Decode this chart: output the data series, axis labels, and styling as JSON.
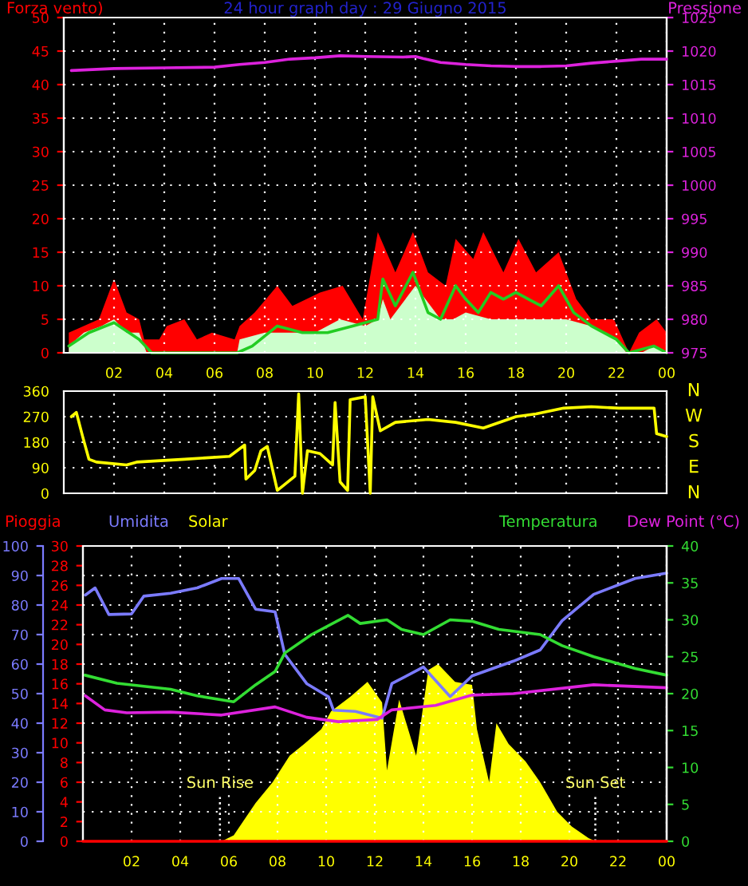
{
  "chart_data": [
    {
      "type": "line",
      "title": "24 hour graph day : 29 Giugno 2015",
      "ylabel": "Forza vento)",
      "y2label": "Pressione",
      "xlim": [
        "2015-06-29T00:00",
        "2015-06-30T00:00"
      ],
      "xticks": [
        {
          "value": "2015-06-29T02:00",
          "label": "02"
        },
        {
          "value": "2015-06-29T04:00",
          "label": "04"
        },
        {
          "value": "2015-06-29T06:00",
          "label": "06"
        },
        {
          "value": "2015-06-29T08:00",
          "label": "08"
        },
        {
          "value": "2015-06-29T10:00",
          "label": "10"
        },
        {
          "value": "2015-06-29T12:00",
          "label": "12"
        },
        {
          "value": "2015-06-29T14:00",
          "label": "14"
        },
        {
          "value": "2015-06-29T16:00",
          "label": "16"
        },
        {
          "value": "2015-06-29T18:00",
          "label": "18"
        },
        {
          "value": "2015-06-29T20:00",
          "label": "20"
        },
        {
          "value": "2015-06-29T22:00",
          "label": "22"
        },
        {
          "value": "2015-06-30T00:00",
          "label": "00"
        }
      ],
      "ylim": [
        0,
        50
      ],
      "yticks": [
        0,
        5,
        10,
        15,
        20,
        25,
        30,
        35,
        40,
        45,
        50
      ],
      "y2lim": [
        975,
        1025
      ],
      "y2ticks": [
        975,
        980,
        985,
        990,
        995,
        1000,
        1005,
        1010,
        1015,
        1020,
        1025
      ],
      "grid": true,
      "series": [
        {
          "type": "area",
          "color": "#ff0000",
          "x": [
            "2015-06-29T00:12",
            "2015-06-29T01:24",
            "2015-06-29T02:00",
            "2015-06-29T02:30",
            "2015-06-29T03:00",
            "2015-06-29T03:12",
            "2015-06-29T03:48",
            "2015-06-29T04:06",
            "2015-06-29T04:48",
            "2015-06-29T05:18",
            "2015-06-29T05:54",
            "2015-06-29T06:48",
            "2015-06-29T07:00",
            "2015-06-29T07:36",
            "2015-06-29T08:30",
            "2015-06-29T09:06",
            "2015-06-29T10:12",
            "2015-06-29T11:06",
            "2015-06-29T11:54",
            "2015-06-29T12:30",
            "2015-06-29T13:12",
            "2015-06-29T13:54",
            "2015-06-29T14:30",
            "2015-06-29T15:12",
            "2015-06-29T15:36",
            "2015-06-29T16:18",
            "2015-06-29T16:42",
            "2015-06-29T17:30",
            "2015-06-29T18:06",
            "2015-06-29T18:48",
            "2015-06-29T19:42",
            "2015-06-29T20:24",
            "2015-06-29T21:00",
            "2015-06-29T21:54",
            "2015-06-29T22:30",
            "2015-06-29T22:54",
            "2015-06-29T23:36",
            "2015-06-30T00:00"
          ],
          "values": [
            3,
            5,
            11,
            6,
            5,
            2,
            2,
            4,
            5,
            2,
            3,
            2,
            4,
            6,
            10,
            7,
            9,
            10,
            5,
            18,
            12,
            18,
            12,
            10,
            17,
            14,
            18,
            12,
            17,
            12,
            15,
            8,
            5,
            5,
            0,
            3,
            5,
            3
          ]
        },
        {
          "type": "area",
          "color": "#ccffcc",
          "x": [
            "2015-06-29T00:12",
            "2015-06-29T00:48",
            "2015-06-29T01:30",
            "2015-06-29T02:00",
            "2015-06-29T02:30",
            "2015-06-29T03:00",
            "2015-06-29T03:18",
            "2015-06-29T04:00",
            "2015-06-29T06:54",
            "2015-06-29T07:00",
            "2015-06-29T08:00",
            "2015-06-29T09:00",
            "2015-06-29T10:00",
            "2015-06-29T11:00",
            "2015-06-29T12:00",
            "2015-06-29T12:30",
            "2015-06-29T12:42",
            "2015-06-29T13:00",
            "2015-06-29T14:00",
            "2015-06-29T15:00",
            "2015-06-29T15:30",
            "2015-06-29T16:00",
            "2015-06-29T17:00",
            "2015-06-29T18:00",
            "2015-06-29T19:00",
            "2015-06-29T20:00",
            "2015-06-29T21:00",
            "2015-06-29T22:00",
            "2015-06-29T22:24",
            "2015-06-29T23:00",
            "2015-06-29T23:30",
            "2015-06-30T00:00"
          ],
          "values": [
            1,
            3,
            4,
            5,
            3,
            3,
            0,
            0,
            0,
            2,
            3,
            3,
            3,
            5,
            4,
            5,
            8,
            5,
            10,
            5,
            5,
            6,
            5,
            5,
            5,
            5,
            4,
            2,
            0,
            0,
            1,
            0
          ]
        },
        {
          "type": "line",
          "color": "#22cc22",
          "x": [
            "2015-06-29T00:12",
            "2015-06-29T01:00",
            "2015-06-29T02:00",
            "2015-06-29T03:00",
            "2015-06-29T03:30",
            "2015-06-29T04:30",
            "2015-06-29T06:54",
            "2015-06-29T07:30",
            "2015-06-29T08:30",
            "2015-06-29T09:30",
            "2015-06-29T10:30",
            "2015-06-29T11:30",
            "2015-06-29T12:30",
            "2015-06-29T12:42",
            "2015-06-29T13:12",
            "2015-06-29T13:54",
            "2015-06-29T14:30",
            "2015-06-29T15:00",
            "2015-06-29T15:36",
            "2015-06-29T16:00",
            "2015-06-29T16:30",
            "2015-06-29T17:00",
            "2015-06-29T17:30",
            "2015-06-29T18:00",
            "2015-06-29T18:30",
            "2015-06-29T19:00",
            "2015-06-29T19:42",
            "2015-06-29T20:18",
            "2015-06-29T21:00",
            "2015-06-29T22:00",
            "2015-06-29T22:30",
            "2015-06-29T23:30",
            "2015-06-30T00:00"
          ],
          "values": [
            1,
            3,
            4.5,
            2,
            0,
            0,
            0,
            1,
            4,
            3,
            3,
            4,
            5,
            11,
            7,
            12,
            6,
            5,
            10,
            8,
            6,
            9,
            8,
            9,
            8,
            7,
            10,
            6,
            4,
            2,
            0,
            1,
            0
          ]
        },
        {
          "type": "line",
          "axis": "y2",
          "color": "#dd22dd",
          "x": [
            "2015-06-29T00:18",
            "2015-06-29T02:00",
            "2015-06-29T04:00",
            "2015-06-29T06:00",
            "2015-06-29T07:00",
            "2015-06-29T08:00",
            "2015-06-29T09:00",
            "2015-06-29T10:00",
            "2015-06-29T11:00",
            "2015-06-29T12:00",
            "2015-06-29T13:30",
            "2015-06-29T14:00",
            "2015-06-29T14:18",
            "2015-06-29T15:00",
            "2015-06-29T16:00",
            "2015-06-29T17:00",
            "2015-06-29T18:00",
            "2015-06-29T19:00",
            "2015-06-29T20:00",
            "2015-06-29T21:00",
            "2015-06-29T22:00",
            "2015-06-29T23:00",
            "2015-06-30T00:00"
          ],
          "values": [
            1017.1,
            1017.4,
            1017.5,
            1017.6,
            1018.0,
            1018.3,
            1018.8,
            1019.0,
            1019.3,
            1019.2,
            1019.1,
            1019.2,
            1018.9,
            1018.3,
            1018.0,
            1017.8,
            1017.7,
            1017.7,
            1017.8,
            1018.2,
            1018.5,
            1018.8,
            1018.8
          ]
        }
      ]
    },
    {
      "type": "line",
      "xlim": [
        "2015-06-29T00:00",
        "2015-06-30T00:00"
      ],
      "xticks": [
        {
          "value": "2015-06-29T02:00",
          "label": null
        },
        {
          "value": "2015-06-29T04:00",
          "label": null
        },
        {
          "value": "2015-06-29T06:00",
          "label": null
        },
        {
          "value": "2015-06-29T08:00",
          "label": null
        },
        {
          "value": "2015-06-29T10:00",
          "label": null
        },
        {
          "value": "2015-06-29T12:00",
          "label": null
        },
        {
          "value": "2015-06-29T14:00",
          "label": null
        },
        {
          "value": "2015-06-29T16:00",
          "label": null
        },
        {
          "value": "2015-06-29T18:00",
          "label": null
        },
        {
          "value": "2015-06-29T20:00",
          "label": null
        },
        {
          "value": "2015-06-29T22:00",
          "label": null
        },
        {
          "value": "2015-06-30T00:00",
          "label": null
        }
      ],
      "ylim": [
        0,
        360
      ],
      "yticks": [
        0,
        90,
        180,
        270,
        360
      ],
      "annotations": [
        "N",
        "W",
        "S",
        "E",
        "N"
      ],
      "grid": true,
      "tick_labels": "y",
      "series": [
        {
          "color": "#ffff00",
          "x": [
            "2015-06-29T00:18",
            "2015-06-29T00:30",
            "2015-06-29T00:45",
            "2015-06-29T01:00",
            "2015-06-29T01:18",
            "2015-06-29T02:30",
            "2015-06-29T02:54",
            "2015-06-29T04:48",
            "2015-06-29T06:36",
            "2015-06-29T07:12",
            "2015-06-29T07:15",
            "2015-06-29T07:36",
            "2015-06-29T07:51",
            "2015-06-29T08:06",
            "2015-06-29T08:30",
            "2015-06-29T09:12",
            "2015-06-29T09:21",
            "2015-06-29T09:30",
            "2015-06-29T09:42",
            "2015-06-29T10:12",
            "2015-06-29T10:42",
            "2015-06-29T10:48",
            "2015-06-29T11:00",
            "2015-06-29T11:18",
            "2015-06-29T11:24",
            "2015-06-29T12:00",
            "2015-06-29T12:12",
            "2015-06-29T12:18",
            "2015-06-29T12:36",
            "2015-06-29T13:12",
            "2015-06-29T14:30",
            "2015-06-29T15:36",
            "2015-06-29T16:42",
            "2015-06-29T18:00",
            "2015-06-29T18:48",
            "2015-06-29T19:54",
            "2015-06-29T21:00",
            "2015-06-29T22:06",
            "2015-06-29T23:30",
            "2015-06-29T23:36",
            "2015-06-30T00:00"
          ],
          "values": [
            270,
            285,
            200,
            120,
            110,
            100,
            110,
            120,
            130,
            170,
            50,
            80,
            150,
            165,
            10,
            60,
            350,
            0,
            150,
            140,
            100,
            320,
            40,
            10,
            330,
            340,
            0,
            340,
            220,
            250,
            260,
            250,
            230,
            270,
            280,
            300,
            305,
            300,
            300,
            210,
            200
          ]
        }
      ]
    },
    {
      "type": "line",
      "xlim": [
        "2015-06-29T00:00",
        "2015-06-30T00:00"
      ],
      "xticks": [
        {
          "value": "2015-06-29T02:00",
          "label": "02"
        },
        {
          "value": "2015-06-29T04:00",
          "label": "04"
        },
        {
          "value": "2015-06-29T06:00",
          "label": "06"
        },
        {
          "value": "2015-06-29T08:00",
          "label": "08"
        },
        {
          "value": "2015-06-29T10:00",
          "label": "10"
        },
        {
          "value": "2015-06-29T12:00",
          "label": "12"
        },
        {
          "value": "2015-06-29T14:00",
          "label": "14"
        },
        {
          "value": "2015-06-29T16:00",
          "label": "16"
        },
        {
          "value": "2015-06-29T18:00",
          "label": "18"
        },
        {
          "value": "2015-06-29T20:00",
          "label": "20"
        },
        {
          "value": "2015-06-29T22:00",
          "label": "22"
        },
        {
          "value": "2015-06-30T00:00",
          "label": "00"
        }
      ],
      "ylim": [
        0,
        100
      ],
      "yticks": [
        0,
        10,
        20,
        30,
        40,
        50,
        60,
        70,
        80,
        90,
        100
      ],
      "y3lim": [
        0,
        30
      ],
      "y3ticks": [
        0,
        2,
        4,
        6,
        8,
        10,
        12,
        14,
        16,
        18,
        20,
        22,
        24,
        26,
        28,
        30
      ],
      "y2lim": [
        0,
        40
      ],
      "y2ticks": [
        0,
        5,
        10,
        15,
        20,
        25,
        30,
        35,
        40
      ],
      "grid": true,
      "legend": "top",
      "ref_lines": [
        {
          "axis": "x",
          "value": "2015-06-29T05:38",
          "label": "Sun Rise"
        },
        {
          "axis": "x",
          "value": "2015-06-29T21:04",
          "label": "Sun Set"
        }
      ],
      "series": [
        {
          "name": "Pioggia",
          "axis": "y3",
          "color": "#ff0000",
          "x": [
            "2015-06-29T00:00",
            "2015-06-29T06:00",
            "2015-06-29T12:00",
            "2015-06-29T18:00",
            "2015-06-30T00:00"
          ],
          "values": [
            0,
            0,
            0,
            0,
            0
          ]
        },
        {
          "name": "Umidita",
          "color": "#7b7bff",
          "x": [
            "2015-06-29T00:06",
            "2015-06-29T00:30",
            "2015-06-29T01:04",
            "2015-06-29T02:00",
            "2015-06-29T02:30",
            "2015-06-29T03:36",
            "2015-06-29T04:42",
            "2015-06-29T05:42",
            "2015-06-29T06:24",
            "2015-06-29T07:06",
            "2015-06-29T07:54",
            "2015-06-29T08:18",
            "2015-06-29T09:12",
            "2015-06-29T10:06",
            "2015-06-29T10:18",
            "2015-06-29T11:12",
            "2015-06-29T12:18",
            "2015-06-29T12:42",
            "2015-06-29T14:00",
            "2015-06-29T15:06",
            "2015-06-29T16:00",
            "2015-06-29T17:42",
            "2015-06-29T18:48",
            "2015-06-29T19:42",
            "2015-06-29T21:00",
            "2015-06-29T22:42",
            "2015-06-30T00:00"
          ],
          "values": [
            83.4,
            85.8,
            76.8,
            77,
            83,
            84,
            85.8,
            89,
            89,
            78.6,
            77.7,
            63.3,
            53.4,
            48.9,
            44.4,
            44,
            41.7,
            53.4,
            59,
            49,
            56,
            61,
            64.8,
            74.7,
            83.6,
            89,
            90.8
          ]
        },
        {
          "name": "Solar",
          "type": "area",
          "color": "#ffff00",
          "x": [
            "2015-06-29T05:42",
            "2015-06-29T06:12",
            "2015-06-29T07:06",
            "2015-06-29T07:48",
            "2015-06-29T08:30",
            "2015-06-29T09:06",
            "2015-06-29T09:48",
            "2015-06-29T10:12",
            "2015-06-29T11:00",
            "2015-06-29T11:42",
            "2015-06-29T12:18",
            "2015-06-29T12:30",
            "2015-06-29T13:00",
            "2015-06-29T13:42",
            "2015-06-29T14:12",
            "2015-06-29T14:36",
            "2015-06-29T15:18",
            "2015-06-29T16:00",
            "2015-06-29T16:12",
            "2015-06-29T16:42",
            "2015-06-29T17:00",
            "2015-06-29T17:30",
            "2015-06-29T18:12",
            "2015-06-29T18:48",
            "2015-06-29T19:30",
            "2015-06-29T20:06",
            "2015-06-29T20:48",
            "2015-06-29T21:06"
          ],
          "values": [
            0,
            2,
            13,
            20,
            29,
            33,
            38,
            44,
            49,
            54,
            47,
            24,
            48,
            29,
            58,
            60,
            54,
            53,
            38,
            20,
            40,
            33,
            27,
            20,
            10,
            5,
            1,
            0
          ]
        },
        {
          "name": "Temperatura",
          "axis": "y2",
          "color": "#33dd33",
          "x": [
            "2015-06-29T00:05",
            "2015-06-29T01:24",
            "2015-06-29T03:36",
            "2015-06-29T04:42",
            "2015-06-29T06:12",
            "2015-06-29T07:06",
            "2015-06-29T07:54",
            "2015-06-29T08:18",
            "2015-06-29T09:24",
            "2015-06-29T10:54",
            "2015-06-29T11:24",
            "2015-06-29T12:30",
            "2015-06-29T13:06",
            "2015-06-29T14:00",
            "2015-06-29T15:06",
            "2015-06-29T16:00",
            "2015-06-29T17:06",
            "2015-06-29T18:48",
            "2015-06-29T19:42",
            "2015-06-29T21:00",
            "2015-06-29T22:42",
            "2015-06-30T00:00"
          ],
          "values": [
            22.5,
            21.4,
            20.6,
            19.7,
            18.9,
            21.2,
            23,
            25.5,
            28,
            30.6,
            29.5,
            30,
            28.7,
            28,
            30,
            29.8,
            28.7,
            28,
            26.5,
            25,
            23.4,
            22.5
          ]
        },
        {
          "name": "Dew Point (°C)",
          "axis": "y2",
          "color": "#dd22dd",
          "x": [
            "2015-06-29T00:06",
            "2015-06-29T00:54",
            "2015-06-29T01:48",
            "2015-06-29T03:36",
            "2015-06-29T05:42",
            "2015-06-29T07:54",
            "2015-06-29T09:12",
            "2015-06-29T10:30",
            "2015-06-29T12:06",
            "2015-06-29T12:42",
            "2015-06-29T14:30",
            "2015-06-29T16:00",
            "2015-06-29T17:42",
            "2015-06-29T19:54",
            "2015-06-29T21:00",
            "2015-06-30T00:00"
          ],
          "values": [
            19.7,
            17.8,
            17.4,
            17.5,
            17.1,
            18.2,
            16.8,
            16.2,
            16.5,
            17.8,
            18.4,
            19.8,
            20,
            20.8,
            21.2,
            20.8
          ]
        }
      ]
    }
  ]
}
